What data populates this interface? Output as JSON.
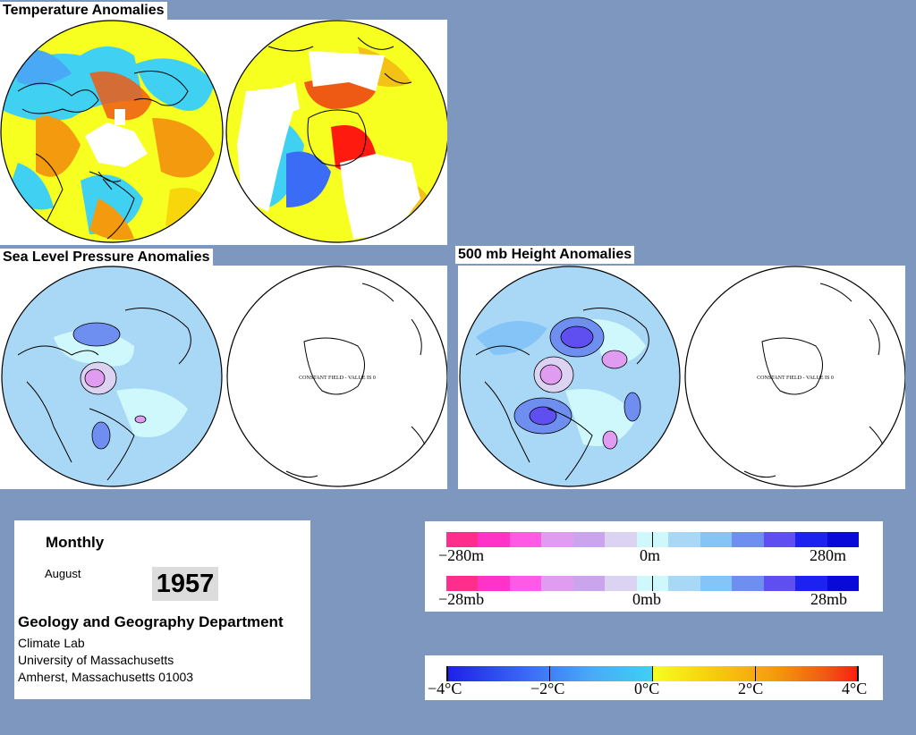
{
  "sections": {
    "temperature": {
      "title": "Temperature Anomalies"
    },
    "slp": {
      "title": "Sea Level Pressure Anomalies",
      "south_label": "CONSTANT FIELD - VALUE IS 0"
    },
    "height500": {
      "title": "500 mb Height Anomalies",
      "south_label": "CONSTANT FIELD - VALUE IS 0"
    }
  },
  "info": {
    "period": "Monthly",
    "month": "August",
    "year": "1957",
    "department": "Geology and Geography Department",
    "lab": "Climate Lab",
    "university": "University of Massachusetts",
    "address": "Amherst, Massachusetts 01003"
  },
  "legends": {
    "height": {
      "min_label": "−280m",
      "mid_label": "0m",
      "max_label": "280m"
    },
    "pressure": {
      "min_label": "−28mb",
      "mid_label": "0mb",
      "max_label": "28mb"
    },
    "temperature": {
      "labels": [
        "−4°C",
        "−2°C",
        "0°C",
        "2°C",
        "4°C"
      ]
    }
  },
  "colors": {
    "background": "#7d97bf",
    "anomaly_scale": [
      "#ff2e8a",
      "#ff33c8",
      "#ff5ae6",
      "#e09cf0",
      "#caa5ee",
      "#dcd3f2",
      "#cff8fc",
      "#a9d8f7",
      "#84c4f7",
      "#6e8ff0",
      "#5f4ef0",
      "#1d22f0",
      "#0a0ad8"
    ],
    "temperature_scale": [
      "#1e1ee8",
      "#3b6cf5",
      "#4aa9f6",
      "#3fd0f2",
      "#f6ff20",
      "#f7d60c",
      "#f39a0e",
      "#ee5a14",
      "#ff1a10"
    ]
  }
}
